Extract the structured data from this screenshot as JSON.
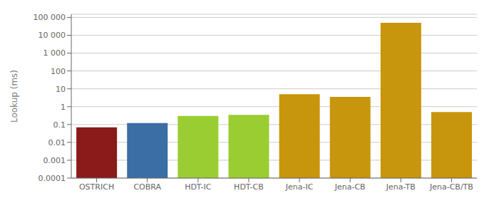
{
  "chart_data": {
    "type": "bar",
    "ylabel": "Lookup (ms)",
    "categories": [
      "OSTRICH",
      "COBRA",
      "HDT-IC",
      "HDT-CB",
      "Jena-IC",
      "Jena-CB",
      "Jena-TB",
      "Jena-CB/TB"
    ],
    "values": [
      0.07,
      0.12,
      0.3,
      0.35,
      5.0,
      3.5,
      50000,
      0.5
    ],
    "colors": [
      "#8B1A1A",
      "#3A6EA5",
      "#9ACD32",
      "#9ACD32",
      "#C8960C",
      "#C8960C",
      "#C8960C",
      "#C8960C"
    ],
    "log": "y",
    "ylim": [
      0.0001,
      150000
    ],
    "yticks": [
      0.0001,
      0.001,
      0.01,
      0.1,
      1,
      10,
      100,
      {
        "value": 1000,
        "label": "1 000"
      },
      {
        "value": 10000,
        "label": "10 000"
      },
      {
        "value": 100000,
        "label": "100 000"
      }
    ],
    "grid": true
  }
}
